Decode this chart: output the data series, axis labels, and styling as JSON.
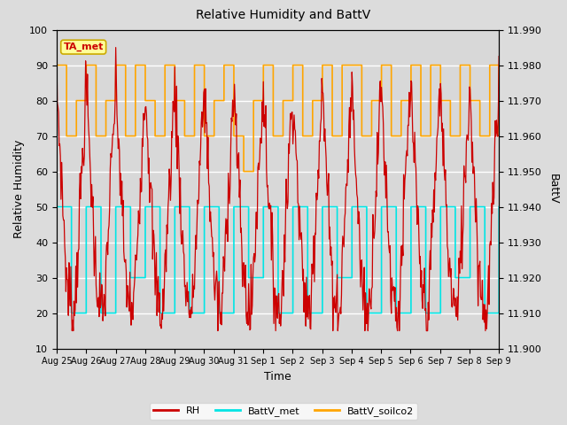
{
  "title": "Relative Humidity and BattV",
  "xlabel": "Time",
  "ylabel_left": "Relative Humidity",
  "ylabel_right": "BattV",
  "ylim_left": [
    10,
    100
  ],
  "ylim_right": [
    11.9,
    11.99
  ],
  "fig_bg_color": "#dcdcdc",
  "plot_bg_color": "#d8d8d8",
  "annotation_text": "TA_met",
  "annotation_bg": "#ffff99",
  "annotation_border": "#ccaa00",
  "rh_color": "#cc0000",
  "battv_met_color": "#00e5e5",
  "battv_soilco2_color": "#ffa500",
  "x_tick_labels": [
    "Aug 25",
    "Aug 26",
    "Aug 27",
    "Aug 28",
    "Aug 29",
    "Aug 30",
    "Aug 31",
    "Sep 1",
    "Sep 2",
    "Sep 3",
    "Sep 4",
    "Sep 5",
    "Sep 6",
    "Sep 7",
    "Sep 8",
    "Sep 9"
  ],
  "yticks_right": [
    11.9,
    11.91,
    11.92,
    11.93,
    11.94,
    11.95,
    11.96,
    11.97,
    11.98,
    11.99
  ],
  "yticks_left": [
    10,
    20,
    30,
    40,
    50,
    60,
    70,
    80,
    90,
    100
  ],
  "legend_labels": [
    "RH",
    "BattV_met",
    "BattV_soilco2"
  ]
}
